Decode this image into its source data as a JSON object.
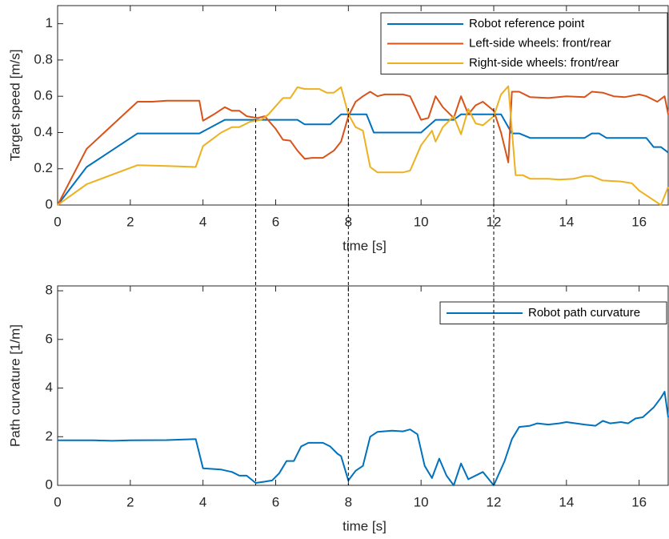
{
  "chart_data": [
    {
      "type": "line",
      "xlabel": "time [s]",
      "ylabel": "Target speed [m/s]",
      "xlim": [
        0,
        16.8
      ],
      "ylim": [
        0,
        1.1
      ],
      "xticks": [
        0,
        2,
        4,
        6,
        8,
        10,
        12,
        14,
        16
      ],
      "yticks": [
        0,
        0.2,
        0.4,
        0.6,
        0.8,
        1
      ],
      "legend": "northeast",
      "series": [
        {
          "name": "Robot reference point",
          "color": "#0072bd",
          "x": [
            0,
            0.8,
            2.2,
            3.9,
            4.6,
            6.6,
            6.8,
            7.5,
            7.8,
            8.5,
            8.7,
            10,
            10.4,
            10.9,
            11.1,
            12.2,
            12.5,
            12.7,
            13,
            14.5,
            14.7,
            14.9,
            15.1,
            16.2,
            16.4,
            16.6,
            16.8
          ],
          "values": [
            0,
            0.21,
            0.395,
            0.395,
            0.47,
            0.47,
            0.445,
            0.445,
            0.5,
            0.5,
            0.4,
            0.4,
            0.47,
            0.47,
            0.5,
            0.5,
            0.395,
            0.395,
            0.37,
            0.37,
            0.395,
            0.395,
            0.37,
            0.37,
            0.32,
            0.32,
            0.29
          ]
        },
        {
          "name": "Left-side wheels: front/rear",
          "color": "#d95319",
          "x": [
            0,
            0.8,
            2.2,
            2.6,
            3,
            3.9,
            4,
            4.3,
            4.6,
            4.8,
            5,
            5.2,
            5.5,
            5.7,
            6,
            6.2,
            6.4,
            6.6,
            6.8,
            7,
            7.3,
            7.6,
            7.8,
            8,
            8.2,
            8.4,
            8.6,
            8.8,
            9,
            9.5,
            9.7,
            10,
            10.2,
            10.4,
            10.6,
            10.9,
            11.1,
            11.3,
            11.5,
            11.7,
            12,
            12.2,
            12.4,
            12.5,
            12.7,
            13,
            13.5,
            14,
            14.5,
            14.7,
            15,
            15.3,
            15.6,
            16,
            16.2,
            16.5,
            16.7,
            16.8
          ],
          "values": [
            0,
            0.31,
            0.57,
            0.57,
            0.575,
            0.575,
            0.465,
            0.5,
            0.54,
            0.52,
            0.52,
            0.49,
            0.48,
            0.49,
            0.42,
            0.36,
            0.355,
            0.3,
            0.255,
            0.26,
            0.26,
            0.3,
            0.35,
            0.49,
            0.57,
            0.6,
            0.625,
            0.6,
            0.61,
            0.61,
            0.6,
            0.47,
            0.48,
            0.6,
            0.54,
            0.48,
            0.6,
            0.5,
            0.55,
            0.57,
            0.52,
            0.4,
            0.235,
            0.625,
            0.625,
            0.595,
            0.59,
            0.6,
            0.595,
            0.625,
            0.62,
            0.6,
            0.595,
            0.61,
            0.6,
            0.57,
            0.6,
            0.5
          ]
        },
        {
          "name": "Right-side wheels: front/rear",
          "color": "#edb120",
          "x": [
            0,
            0.8,
            2.2,
            3,
            3.8,
            4,
            4.5,
            4.8,
            5,
            5.3,
            5.6,
            5.8,
            6.2,
            6.4,
            6.6,
            6.8,
            7.2,
            7.4,
            7.6,
            7.8,
            8,
            8.2,
            8.4,
            8.6,
            8.8,
            9.5,
            9.7,
            10,
            10.3,
            10.4,
            10.6,
            10.9,
            11.1,
            11.3,
            11.5,
            11.7,
            12,
            12.2,
            12.4,
            12.6,
            12.8,
            13,
            13.5,
            13.8,
            14.2,
            14.5,
            14.7,
            15,
            15.5,
            15.8,
            16,
            16.3,
            16.6,
            16.8
          ],
          "values": [
            0,
            0.115,
            0.22,
            0.215,
            0.21,
            0.325,
            0.4,
            0.43,
            0.43,
            0.46,
            0.47,
            0.5,
            0.59,
            0.59,
            0.65,
            0.64,
            0.64,
            0.62,
            0.62,
            0.65,
            0.5,
            0.43,
            0.41,
            0.21,
            0.18,
            0.18,
            0.19,
            0.33,
            0.41,
            0.35,
            0.43,
            0.49,
            0.39,
            0.53,
            0.45,
            0.44,
            0.49,
            0.61,
            0.655,
            0.165,
            0.165,
            0.145,
            0.145,
            0.14,
            0.145,
            0.16,
            0.16,
            0.135,
            0.13,
            0.12,
            0.08,
            0.04,
            0,
            0.1
          ]
        }
      ]
    },
    {
      "type": "line",
      "xlabel": "time [s]",
      "ylabel": "Path curvature [1/m]",
      "xlim": [
        0,
        16.8
      ],
      "ylim": [
        0,
        8.2
      ],
      "xticks": [
        0,
        2,
        4,
        6,
        8,
        10,
        12,
        14,
        16
      ],
      "yticks": [
        0,
        2,
        4,
        6,
        8
      ],
      "legend": "northeast",
      "series": [
        {
          "name": "Robot path curvature",
          "color": "#0072bd",
          "x": [
            0,
            1,
            1.5,
            2,
            3,
            3.8,
            4,
            4.5,
            4.8,
            5,
            5.2,
            5.45,
            5.7,
            5.9,
            6.1,
            6.3,
            6.5,
            6.7,
            6.9,
            7.3,
            7.5,
            7.7,
            7.8,
            8,
            8.2,
            8.4,
            8.6,
            8.8,
            9.2,
            9.5,
            9.7,
            9.9,
            10.1,
            10.3,
            10.5,
            10.7,
            10.9,
            11.1,
            11.3,
            11.7,
            12,
            12.3,
            12.5,
            12.7,
            13,
            13.2,
            13.5,
            13.8,
            14,
            14.5,
            14.8,
            15,
            15.2,
            15.5,
            15.7,
            15.9,
            16.1,
            16.4,
            16.6,
            16.7,
            16.8
          ],
          "values": [
            1.85,
            1.85,
            1.83,
            1.85,
            1.86,
            1.9,
            0.7,
            0.65,
            0.55,
            0.4,
            0.4,
            0.1,
            0.15,
            0.2,
            0.5,
            1,
            1,
            1.6,
            1.75,
            1.75,
            1.6,
            1.3,
            1.2,
            0.2,
            0.6,
            0.8,
            2,
            2.2,
            2.25,
            2.22,
            2.3,
            2.1,
            0.8,
            0.3,
            1.1,
            0.4,
            0,
            0.9,
            0.25,
            0.55,
            0,
            1,
            1.9,
            2.4,
            2.45,
            2.55,
            2.5,
            2.55,
            2.6,
            2.5,
            2.45,
            2.65,
            2.55,
            2.6,
            2.55,
            2.75,
            2.8,
            3.2,
            3.6,
            3.85,
            2.8
          ]
        }
      ]
    }
  ],
  "vlines": [
    5.45,
    8,
    12
  ]
}
